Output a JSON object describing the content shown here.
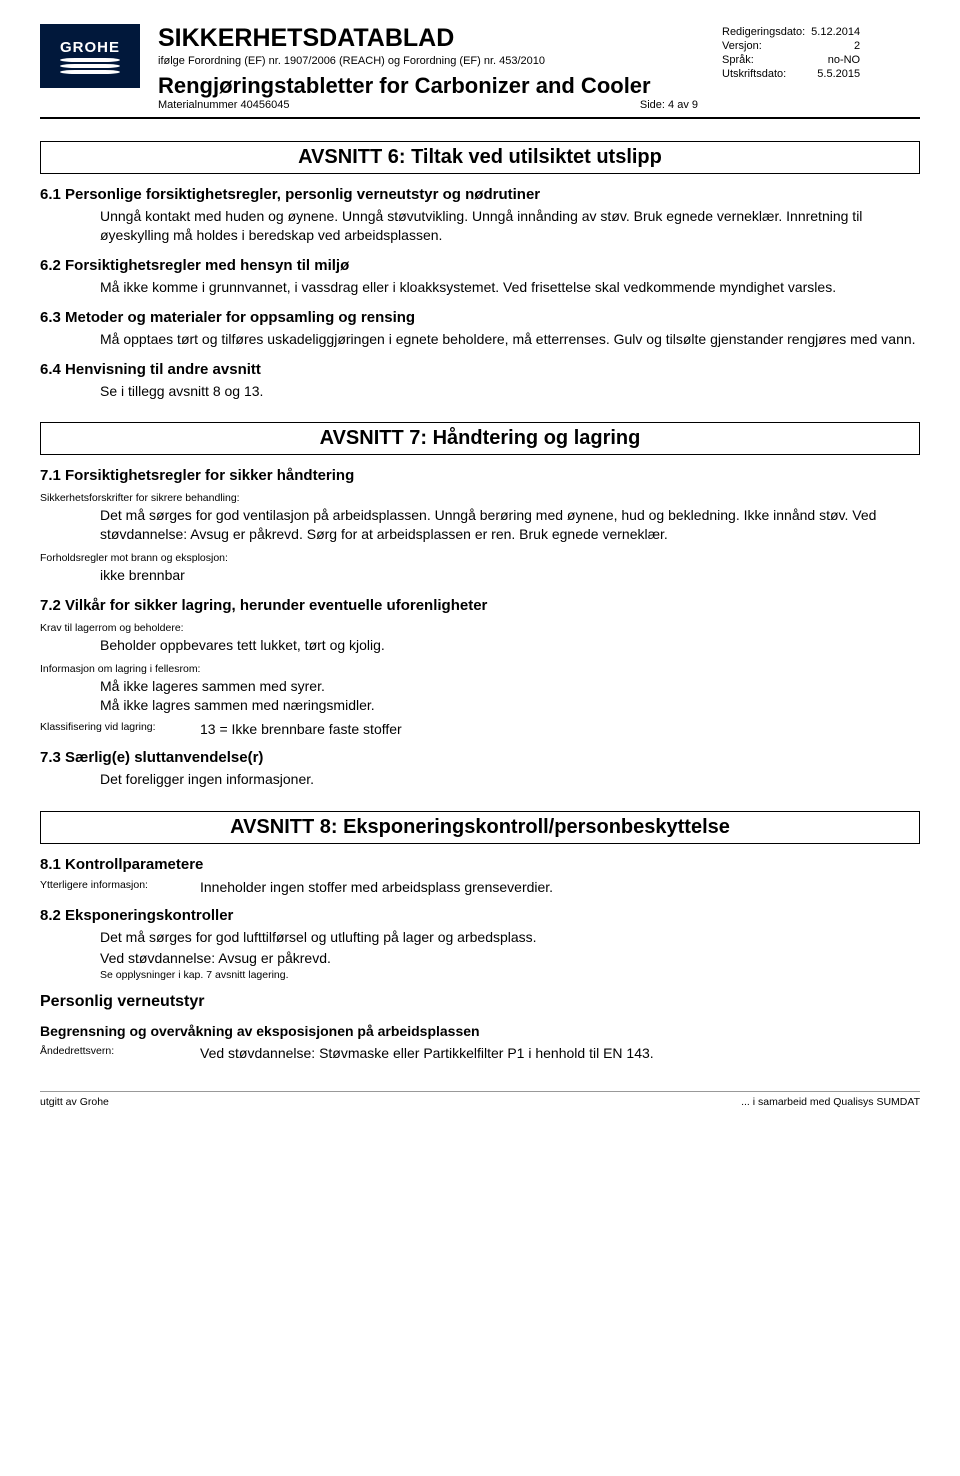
{
  "header": {
    "logo_text": "GROHE",
    "doc_title": "SIKKERHETSDATABLAD",
    "regulation_line": "ifølge Forordning (EF) nr. 1907/2006 (REACH) og Forordning (EF) nr. 453/2010",
    "product_title": "Rengjøringstabletter for Carbonizer and Cooler",
    "material_label": "Materialnummer 40456045",
    "side_label": "Side:",
    "side_value": "4 av 9",
    "meta": {
      "rev_label": "Redigeringsdato:",
      "rev_value": "5.12.2014",
      "ver_label": "Versjon:",
      "ver_value": "2",
      "lang_label": "Språk:",
      "lang_value": "no-NO",
      "print_label": "Utskriftsdato:",
      "print_value": "5.5.2015"
    }
  },
  "section6": {
    "title": "AVSNITT 6: Tiltak ved utilsiktet utslipp",
    "s61_h": "6.1 Personlige forsiktighetsregler, personlig verneutstyr og nødrutiner",
    "s61_t": "Unngå kontakt med huden og øynene. Unngå støvutvikling. Unngå innånding av støv. Bruk egnede verneklær. Innretning til øyeskylling må holdes i beredskap ved arbeidsplassen.",
    "s62_h": "6.2 Forsiktighetsregler med hensyn til miljø",
    "s62_t": "Må ikke komme i grunnvannet, i vassdrag eller i kloakksystemet. Ved frisettelse skal vedkommende myndighet varsles.",
    "s63_h": "6.3 Metoder og materialer for oppsamling og rensing",
    "s63_t": "Må opptaes tørt og tilføres uskadeliggjøringen i egnete beholdere, må etterrenses. Gulv og tilsølte gjenstander rengjøres med vann.",
    "s64_h": "6.4 Henvisning til andre avsnitt",
    "s64_t": "Se i tillegg avsnitt 8 og 13."
  },
  "section7": {
    "title": "AVSNITT 7: Håndtering og lagring",
    "s71_h": "7.1 Forsiktighetsregler for sikker håndtering",
    "lbl_a": "Sikkerhetsforskrifter for sikrere behandling:",
    "txt_a": "Det må sørges for god ventilasjon på arbeidsplassen. Unngå berøring med øynene, hud og bekledning. Ikke innånd støv. Ved støvdannelse: Avsug er påkrevd. Sørg for at arbeidsplassen er ren. Bruk egnede verneklær.",
    "lbl_b": "Forholdsregler mot brann og eksplosjon:",
    "txt_b": "ikke brennbar",
    "s72_h": "7.2 Vilkår for sikker lagring, herunder eventuelle uforenligheter",
    "lbl_c": "Krav til lagerrom og beholdere:",
    "txt_c": "Beholder oppbevares tett lukket, tørt og kjolig.",
    "lbl_d": "Informasjon om lagring i fellesrom:",
    "txt_d": "Må ikke lageres sammen med syrer.\nMå ikke lagres sammen med næringsmidler.",
    "lbl_e": "Klassifisering vid lagring:",
    "txt_e": "13 = Ikke brennbare faste stoffer",
    "s73_h": "7.3 Særlig(e) sluttanvendelse(r)",
    "txt_f": "Det foreligger ingen informasjoner."
  },
  "section8": {
    "title": "AVSNITT 8: Eksponeringskontroll/personbeskyttelse",
    "s81_h": "8.1 Kontrollparametere",
    "lbl_a": "Ytterligere informasjon:",
    "txt_a": "Inneholder ingen stoffer med arbeidsplass grenseverdier.",
    "s82_h": "8.2 Eksponeringskontroller",
    "txt_b1": "Det må sørges for god lufttilførsel og utlufting på lager og arbedsplass.",
    "txt_b2": "Ved støvdannelse: Avsug er påkrevd.",
    "txt_b3": "Se opplysninger i kap. 7 avsnitt lagering.",
    "pv_h": "Personlig verneutstyr",
    "sub_h": "Begrensning og overvåkning av eksposisjonen på arbeidsplassen",
    "lbl_b": "Åndedrettsvern:",
    "txt_c": "Ved støvdannelse: Støvmaske eller Partikkelfilter P1 i henhold til EN 143."
  },
  "footer": {
    "left": "utgitt av Grohe",
    "right": "... i samarbeid med Qualisys SUMDAT"
  }
}
